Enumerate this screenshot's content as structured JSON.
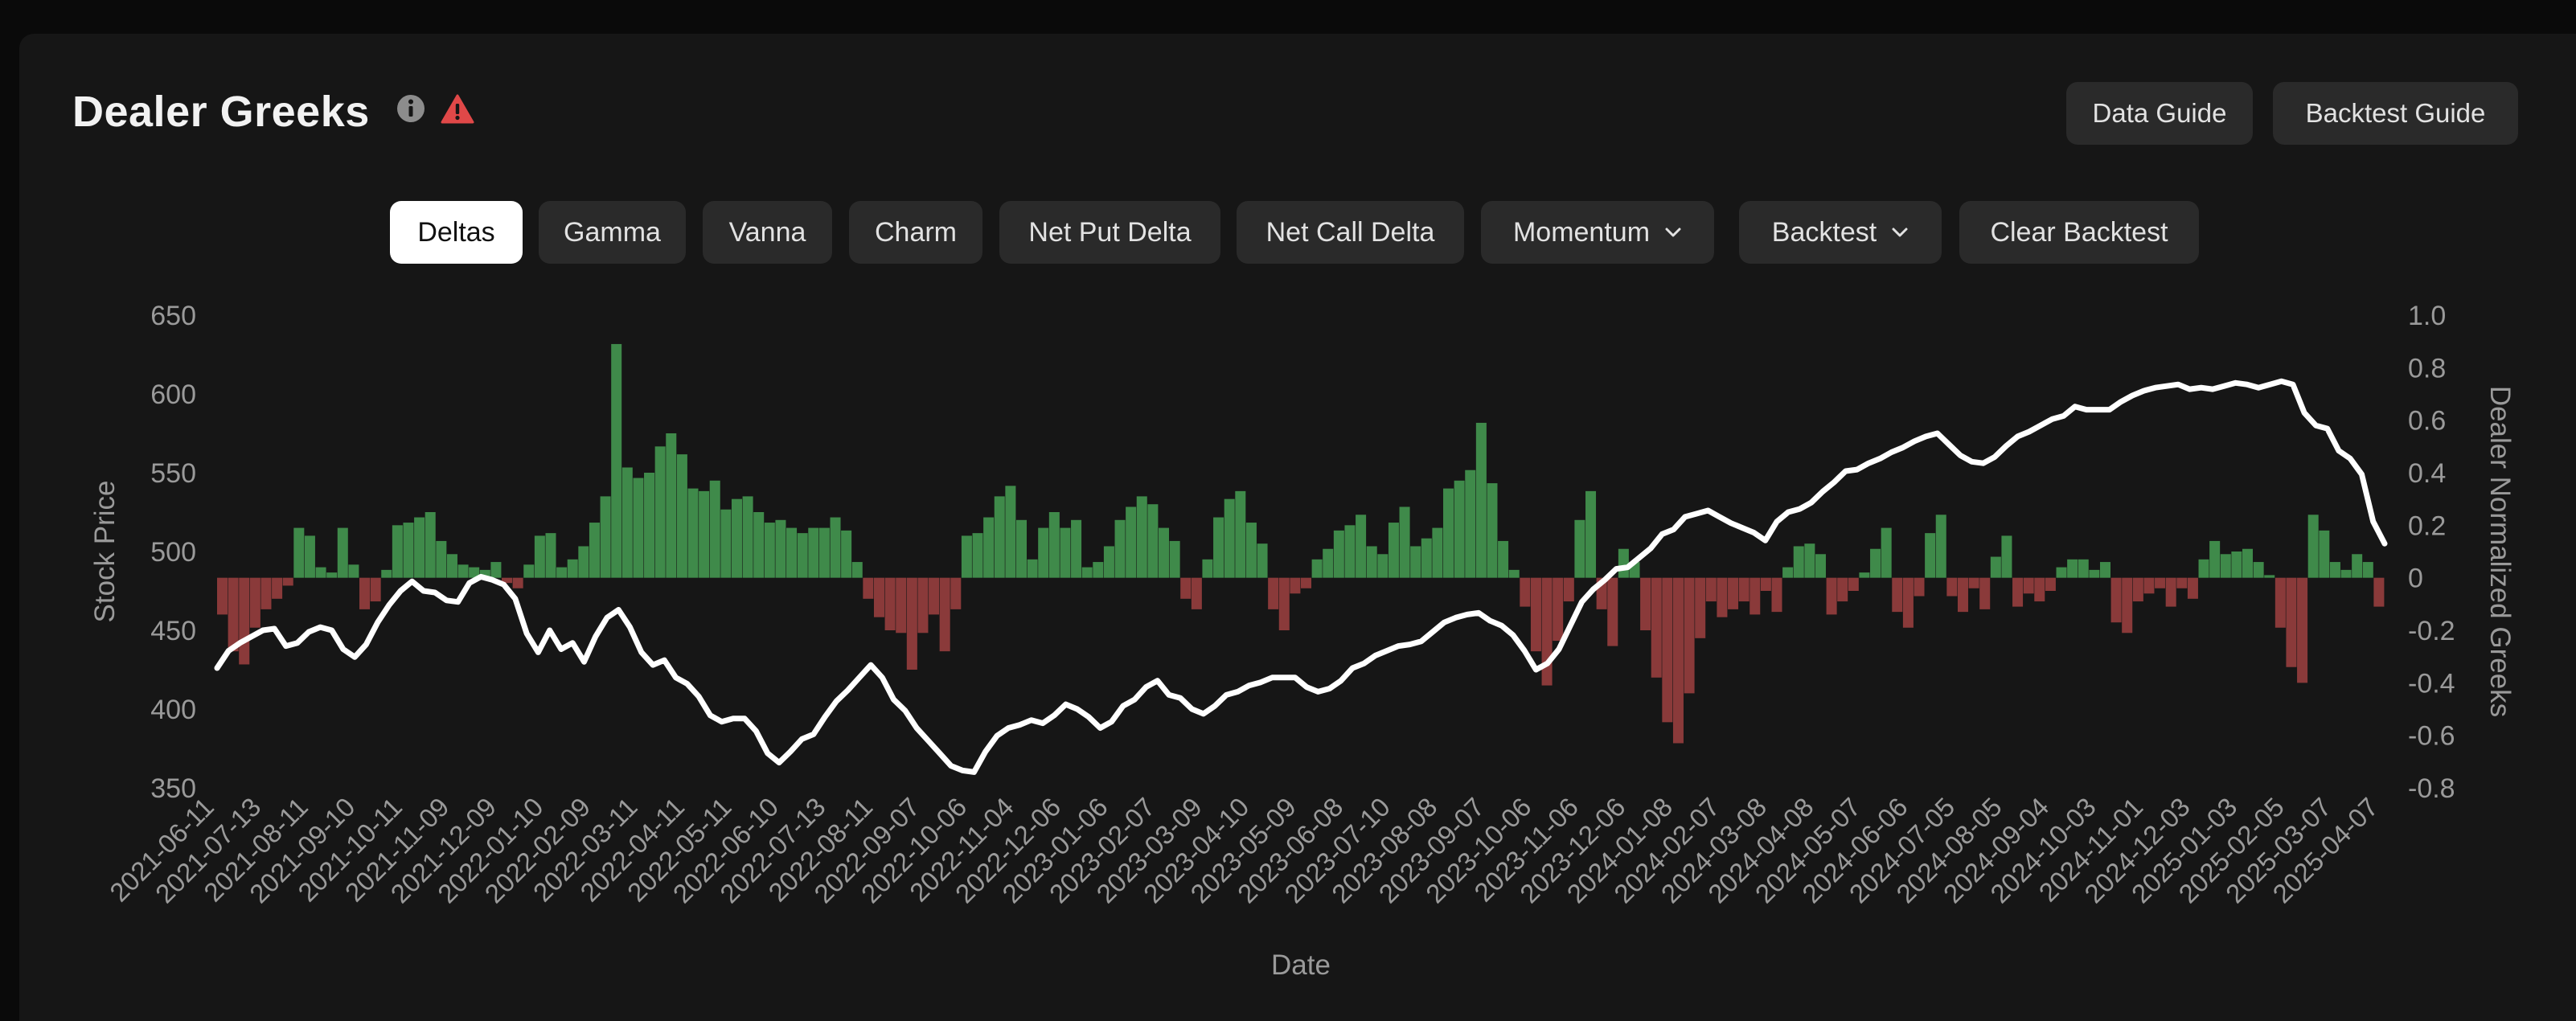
{
  "header": {
    "title": "Dealer Greeks",
    "info_icon": "info-circle-icon",
    "warning_icon": "warning-triangle-icon",
    "data_guide_label": "Data Guide",
    "backtest_guide_label": "Backtest Guide"
  },
  "tabs": [
    {
      "label": "Deltas",
      "active": true
    },
    {
      "label": "Gamma"
    },
    {
      "label": "Vanna"
    },
    {
      "label": "Charm"
    },
    {
      "label": "Net Put Delta"
    },
    {
      "label": "Net Call Delta"
    },
    {
      "label": "Momentum",
      "dropdown": true
    },
    {
      "label": "Backtest",
      "dropdown": true
    },
    {
      "label": "Clear Backtest"
    }
  ],
  "colors": {
    "background": "#161616",
    "positive_bar": "#3f8a4a",
    "negative_bar": "#8a3a3a",
    "price_line": "#ffffff",
    "axis_text": "#9a9a9a"
  },
  "chart_data": {
    "type": "bar",
    "title": "",
    "xlabel": "Date",
    "ylabel_left": "Stock Price",
    "ylabel_right": "Dealer Normalized Greeks",
    "ylim_left": [
      350,
      650
    ],
    "ylim_right": [
      -0.8,
      1.0
    ],
    "yticks_left": [
      "650",
      "600",
      "550",
      "500",
      "450",
      "400",
      "350"
    ],
    "yticks_right": [
      "1.0",
      "0.8",
      "0.6",
      "0.4",
      "0.2",
      "0",
      "-0.2",
      "-0.4",
      "-0.6",
      "-0.8"
    ],
    "x_tick_labels": [
      "2021-06-11",
      "2021-07-13",
      "2021-08-11",
      "2021-09-10",
      "2021-10-11",
      "2021-11-09",
      "2021-12-09",
      "2022-01-10",
      "2022-02-09",
      "2022-03-11",
      "2022-04-11",
      "2022-05-11",
      "2022-06-10",
      "2022-07-13",
      "2022-08-11",
      "2022-09-07",
      "2022-10-06",
      "2022-11-04",
      "2022-12-06",
      "2023-01-06",
      "2023-02-07",
      "2023-03-09",
      "2023-04-10",
      "2023-05-09",
      "2023-06-08",
      "2023-07-10",
      "2023-08-08",
      "2023-09-07",
      "2023-10-06",
      "2023-11-06",
      "2023-12-06",
      "2024-01-08",
      "2024-02-07",
      "2024-03-08",
      "2024-04-08",
      "2024-05-07",
      "2024-06-06",
      "2024-07-05",
      "2024-08-05",
      "2024-09-04",
      "2024-10-03",
      "2024-11-01",
      "2024-12-03",
      "2025-01-03",
      "2025-02-05",
      "2025-03-07",
      "2025-04-07"
    ],
    "grid": false,
    "legend": "none",
    "series": [
      {
        "name": "Stock Price",
        "type": "line",
        "axis": "left",
        "values": [
          426,
          437,
          442,
          446,
          450,
          451,
          440,
          442,
          449,
          452,
          450,
          438,
          433,
          441,
          455,
          466,
          475,
          481,
          475,
          474,
          469,
          468,
          480,
          484,
          482,
          479,
          470,
          448,
          436,
          450,
          438,
          442,
          430,
          446,
          458,
          463,
          452,
          436,
          428,
          431,
          420,
          416,
          408,
          396,
          392,
          394,
          394,
          386,
          372,
          366,
          373,
          381,
          384,
          395,
          405,
          412,
          420,
          428,
          420,
          406,
          399,
          388,
          380,
          372,
          364,
          361,
          360,
          373,
          383,
          388,
          390,
          393,
          391,
          396,
          403,
          400,
          395,
          388,
          392,
          402,
          406,
          414,
          418,
          409,
          407,
          400,
          397,
          402,
          409,
          411,
          415,
          417,
          420,
          420,
          420,
          414,
          411,
          413,
          418,
          426,
          429,
          434,
          437,
          440,
          441,
          443,
          449,
          455,
          458,
          460,
          461,
          456,
          453,
          447,
          437,
          425,
          429,
          438,
          453,
          468,
          476,
          482,
          489,
          490,
          496,
          502,
          511,
          514,
          522,
          524,
          526,
          522,
          518,
          515,
          512,
          507,
          519,
          525,
          527,
          531,
          538,
          544,
          551,
          552,
          556,
          559,
          563,
          566,
          570,
          573,
          575,
          568,
          561,
          557,
          556,
          560,
          567,
          573,
          576,
          580,
          584,
          586,
          592,
          590,
          590,
          590,
          595,
          599,
          602,
          604,
          605,
          606,
          603,
          604,
          603,
          605,
          607,
          606,
          604,
          606,
          608,
          606,
          588,
          580,
          578,
          564,
          559,
          549,
          519,
          505
        ]
      },
      {
        "name": "Dealer Normalized Greeks",
        "type": "bar",
        "axis": "right",
        "values": [
          -0.14,
          -0.28,
          -0.33,
          -0.19,
          -0.12,
          -0.08,
          -0.03,
          0.19,
          0.16,
          0.04,
          0.02,
          0.19,
          0.05,
          -0.12,
          -0.09,
          0.03,
          0.2,
          0.21,
          0.23,
          0.25,
          0.14,
          0.09,
          0.05,
          0.04,
          0.03,
          0.06,
          -0.02,
          -0.04,
          0.05,
          0.16,
          0.17,
          0.04,
          0.07,
          0.12,
          0.21,
          0.31,
          0.89,
          0.42,
          0.38,
          0.4,
          0.5,
          0.55,
          0.47,
          0.34,
          0.33,
          0.37,
          0.26,
          0.3,
          0.31,
          0.25,
          0.21,
          0.22,
          0.19,
          0.17,
          0.19,
          0.19,
          0.23,
          0.18,
          0.06,
          -0.08,
          -0.15,
          -0.2,
          -0.21,
          -0.35,
          -0.21,
          -0.14,
          -0.28,
          -0.12,
          0.16,
          0.17,
          0.23,
          0.31,
          0.35,
          0.22,
          0.07,
          0.19,
          0.25,
          0.19,
          0.22,
          0.04,
          0.06,
          0.12,
          0.22,
          0.27,
          0.31,
          0.28,
          0.19,
          0.14,
          -0.08,
          -0.12,
          0.07,
          0.23,
          0.3,
          0.33,
          0.21,
          0.13,
          -0.12,
          -0.2,
          -0.06,
          -0.04,
          0.07,
          0.11,
          0.18,
          0.2,
          0.24,
          0.12,
          0.09,
          0.21,
          0.27,
          0.12,
          0.15,
          0.19,
          0.34,
          0.37,
          0.41,
          0.59,
          0.36,
          0.14,
          0.03,
          -0.11,
          -0.28,
          -0.41,
          -0.24,
          -0.09,
          0.22,
          0.33,
          -0.12,
          -0.26,
          0.11,
          0.06,
          -0.2,
          -0.38,
          -0.55,
          -0.63,
          -0.44,
          -0.23,
          -0.09,
          -0.15,
          -0.12,
          -0.09,
          -0.14,
          -0.05,
          -0.13,
          0.04,
          0.12,
          0.13,
          0.09,
          -0.14,
          -0.09,
          -0.05,
          0.02,
          0.11,
          0.19,
          -0.13,
          -0.19,
          -0.07,
          0.17,
          0.24,
          -0.07,
          -0.13,
          -0.04,
          -0.12,
          0.08,
          0.16,
          -0.11,
          -0.06,
          -0.09,
          -0.05,
          0.04,
          0.07,
          0.07,
          0.03,
          0.06,
          -0.17,
          -0.21,
          -0.09,
          -0.06,
          -0.04,
          -0.11,
          -0.04,
          -0.08,
          0.07,
          0.14,
          0.09,
          0.1,
          0.11,
          0.06,
          0.01,
          -0.19,
          -0.34,
          -0.4,
          0.24,
          0.18,
          0.06,
          0.03,
          0.09,
          0.06,
          -0.11
        ]
      }
    ]
  }
}
